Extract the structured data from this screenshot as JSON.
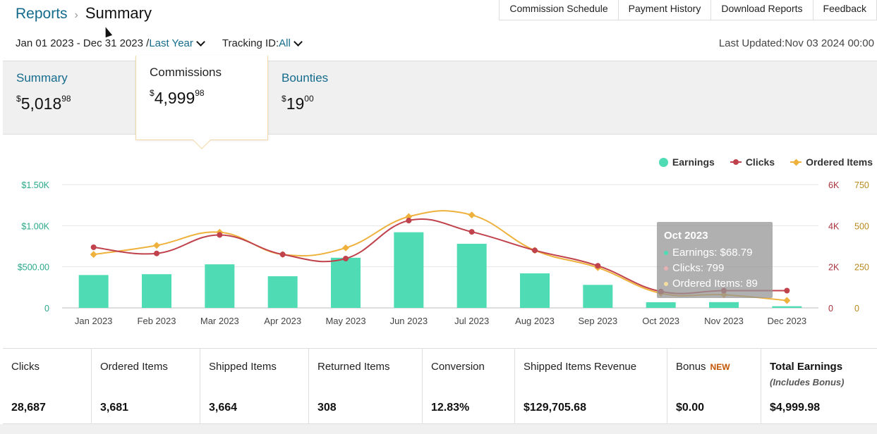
{
  "breadcrumb": {
    "root": "Reports",
    "current": "Summary"
  },
  "top_tabs": [
    "Commission Schedule",
    "Payment History",
    "Download Reports",
    "Feedback"
  ],
  "filters": {
    "date_range": "Jan 01 2023 - Dec 31 2023 /",
    "period_label": "Last Year",
    "tracking_label": "Tracking ID:",
    "tracking_value": "All"
  },
  "last_updated": "Last Updated:Nov 03 2024 00:00",
  "tiles": {
    "summary": {
      "label": "Summary",
      "currency": "$",
      "whole": "5,018",
      "cents": "98"
    },
    "commissions": {
      "label": "Commissions",
      "currency": "$",
      "whole": "4,999",
      "cents": "98"
    },
    "bounties": {
      "label": "Bounties",
      "currency": "$",
      "whole": "19",
      "cents": "00"
    }
  },
  "colors": {
    "earnings": "#4fdcb5",
    "clicks": "#c0424c",
    "ordered": "#eeb13c",
    "link": "#146b8c",
    "badge": "#c45500"
  },
  "chart_data": {
    "type": "bar",
    "categories": [
      "Jan 2023",
      "Feb 2023",
      "Mar 2023",
      "Apr 2023",
      "May 2023",
      "Jun 2023",
      "Jul 2023",
      "Aug 2023",
      "Sep 2023",
      "Oct 2023",
      "Nov 2023",
      "Dec 2023"
    ],
    "legend": [
      "Earnings",
      "Clicks",
      "Ordered Items"
    ],
    "legend_position": "top-right",
    "series": [
      {
        "name": "Earnings",
        "type": "bar",
        "axis": "left",
        "values": [
          400,
          410,
          530,
          385,
          610,
          920,
          780,
          420,
          280,
          68.79,
          70,
          20
        ]
      },
      {
        "name": "Clicks",
        "type": "line",
        "axis": "right1",
        "values": [
          2950,
          2650,
          3550,
          2600,
          2400,
          4250,
          3700,
          2800,
          2050,
          799,
          840,
          840
        ]
      },
      {
        "name": "Ordered Items",
        "type": "line",
        "axis": "right2",
        "values": [
          325,
          380,
          460,
          325,
          365,
          555,
          565,
          350,
          245,
          89,
          80,
          45
        ]
      }
    ],
    "y_left": {
      "ylim": [
        0,
        1500
      ],
      "ticks": [
        "0",
        "$500.00",
        "$1.00K",
        "$1.50K"
      ]
    },
    "y_right1": {
      "ylim": [
        0,
        6000
      ],
      "ticks": [
        "0",
        "2K",
        "4K",
        "6K"
      ]
    },
    "y_right2": {
      "ylim": [
        0,
        750
      ],
      "ticks": [
        "0",
        "250",
        "500",
        "750"
      ]
    },
    "grid": true,
    "tooltip": {
      "title": "Oct 2023",
      "rows": [
        "Earnings: $68.79",
        "Clicks: 799",
        "Ordered Items: 89"
      ]
    }
  },
  "stats": [
    {
      "label": "Clicks",
      "value": "28,687"
    },
    {
      "label": "Ordered Items",
      "value": "3,681"
    },
    {
      "label": "Shipped Items",
      "value": "3,664"
    },
    {
      "label": "Returned Items",
      "value": "308"
    },
    {
      "label": "Conversion",
      "value": "12.83%"
    },
    {
      "label": "Shipped Items Revenue",
      "value": "$129,705.68"
    },
    {
      "label": "Bonus",
      "badge": "NEW",
      "value": "$0.00"
    },
    {
      "label": "Total Earnings",
      "sub": "(Includes Bonus)",
      "value": "$4,999.98"
    }
  ]
}
